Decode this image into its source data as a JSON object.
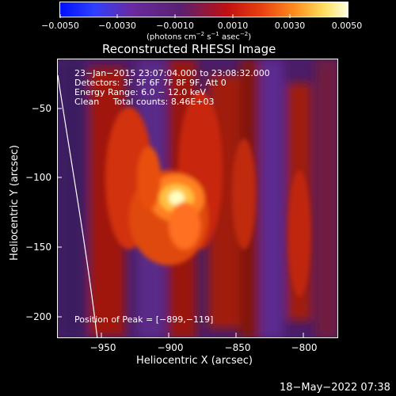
{
  "colorbar": {
    "ticks": [
      "−0.0050",
      "−0.0030",
      "−0.0010",
      "0.0010",
      "0.0030",
      "0.0050"
    ],
    "units_text": "(photons cm",
    "units_sup1": "−2",
    "units_mid": " s",
    "units_sup2": "−1",
    "units_end": " asec",
    "units_sup3": "−2",
    "units_close": ")"
  },
  "plot": {
    "title": "Reconstructed RHESSI Image",
    "annotations": {
      "line1": "23−Jan−2015 23:07:04.000 to 23:08:32.000",
      "line2": "Detectors: 3F 5F 6F 7F 8F 9F, Att 0",
      "line3": "Energy Range: 6.0 − 12.0 keV",
      "line4": "Clean     Total counts: 8.46E+03",
      "peak": "Position of Peak = [−899,−119]"
    },
    "y_ticks": [
      "−50",
      "−100",
      "−150",
      "−200"
    ],
    "x_ticks": [
      "−950",
      "−900",
      "−850",
      "−800"
    ],
    "xlabel": "Heliocentric X (arcsec)",
    "ylabel": "Heliocentric Y (arcsec)"
  },
  "footer": {
    "timestamp": "18−May−2022 07:38"
  }
}
